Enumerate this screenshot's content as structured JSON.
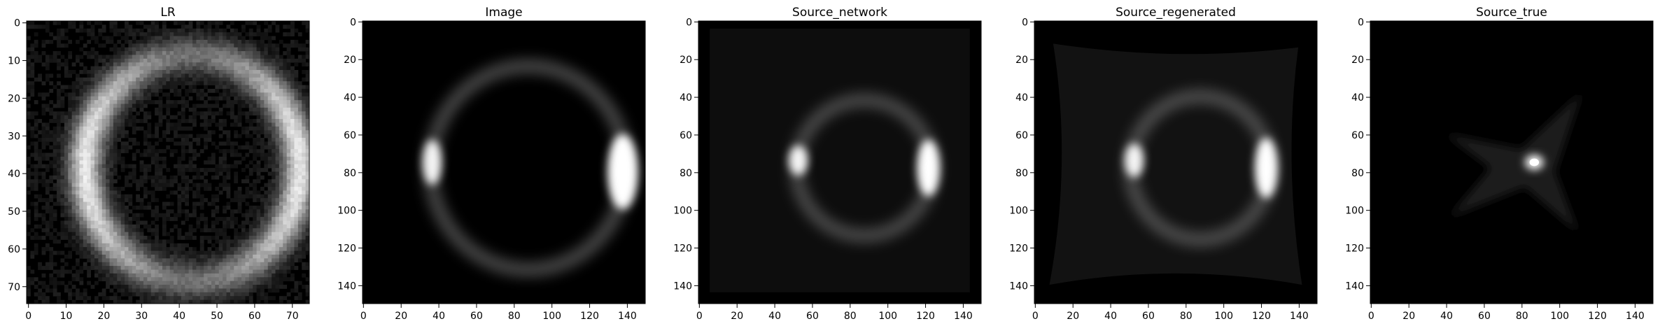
{
  "figure": {
    "panels": [
      {
        "title": "LR",
        "x_ticks": [
          "0",
          "10",
          "20",
          "30",
          "40",
          "50",
          "60",
          "70"
        ],
        "y_ticks": [
          "0",
          "10",
          "20",
          "30",
          "40",
          "50",
          "60",
          "70"
        ],
        "content": "low-resolution pixelated ring"
      },
      {
        "title": "Image",
        "x_ticks": [
          "0",
          "20",
          "40",
          "60",
          "80",
          "100",
          "120",
          "140"
        ],
        "y_ticks": [
          "0",
          "20",
          "40",
          "60",
          "80",
          "100",
          "120",
          "140"
        ],
        "content": "smooth lensed ring"
      },
      {
        "title": "Source_network",
        "x_ticks": [
          "0",
          "20",
          "40",
          "60",
          "80",
          "100",
          "120",
          "140"
        ],
        "y_ticks": [
          "0",
          "20",
          "40",
          "60",
          "80",
          "100",
          "120",
          "140"
        ],
        "content": "reconstructed ring"
      },
      {
        "title": "Source_regenerated",
        "x_ticks": [
          "0",
          "20",
          "40",
          "60",
          "80",
          "100",
          "120",
          "140"
        ],
        "y_ticks": [
          "0",
          "20",
          "40",
          "60",
          "80",
          "100",
          "120",
          "140"
        ],
        "content": "regenerated ring"
      },
      {
        "title": "Source_true",
        "x_ticks": [
          "0",
          "20",
          "40",
          "60",
          "80",
          "100",
          "120",
          "140"
        ],
        "y_ticks": [
          "0",
          "20",
          "40",
          "60",
          "80",
          "100",
          "120",
          "140"
        ],
        "content": "compact star-shaped source"
      }
    ],
    "colormap": "gray"
  }
}
